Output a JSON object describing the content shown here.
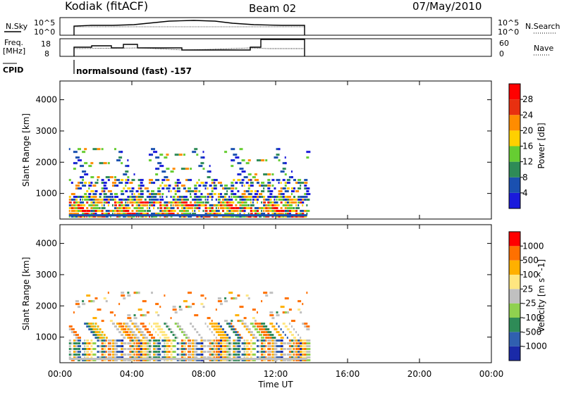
{
  "header": {
    "station": "Kodiak (fitACF)",
    "beam": "Beam 02",
    "date": "07/May/2010"
  },
  "summary_panels": {
    "noise_left_label": "N.Sky",
    "noise_left_ticks": [
      "10^5",
      "10^0"
    ],
    "noise_right_label": "N.Search",
    "noise_right_ticks": [
      "10^5",
      "10^0"
    ],
    "freq_label_line1": "Freq.",
    "freq_label_line2": "[MHz]",
    "freq_left_ticks": [
      "18",
      "8"
    ],
    "nave_label": "Nave",
    "nave_right_ticks": [
      "60",
      "0"
    ],
    "cpid_label": "CPID",
    "cpid_text": "normalsound (fast) -157"
  },
  "chart_data": [
    {
      "type": "heatmap",
      "title": "",
      "xlabel": "",
      "ylabel": "Slant Range [km]",
      "x_ticks": [
        "00:00",
        "04:00",
        "08:00",
        "12:00",
        "16:00",
        "20:00",
        "00:00"
      ],
      "xlim_hours": [
        0,
        24
      ],
      "data_xlim_hours": [
        0.5,
        13.7
      ],
      "ylim": [
        180,
        4600
      ],
      "y_ticks": [
        1000,
        2000,
        3000,
        4000
      ],
      "grid": false,
      "colorbar": {
        "label": "Power [dB]",
        "position": "right",
        "tick_labels": [
          "4",
          "8",
          "12",
          "16",
          "20",
          "24",
          "28"
        ],
        "range": [
          0,
          32
        ],
        "colors": [
          "#1a1adc",
          "#1a50b0",
          "#2e8b57",
          "#66cd32",
          "#ffd000",
          "#ff8c00",
          "#e83010",
          "#ff0000"
        ]
      }
    },
    {
      "type": "heatmap",
      "title": "",
      "xlabel": "Time UT",
      "ylabel": "Slant Range [km]",
      "x_ticks": [
        "00:00",
        "04:00",
        "08:00",
        "12:00",
        "16:00",
        "20:00",
        "00:00"
      ],
      "xlim_hours": [
        0,
        24
      ],
      "data_xlim_hours": [
        0.5,
        13.7
      ],
      "ylim": [
        180,
        4600
      ],
      "y_ticks": [
        1000,
        2000,
        3000,
        4000
      ],
      "grid": false,
      "colorbar": {
        "label": "Velocity [m s^-1]",
        "position": "right",
        "tick_labels": [
          "1000",
          "500",
          "100",
          "25",
          "-25",
          "-100",
          "-500",
          "-1000"
        ],
        "colors": [
          "#1a2aa8",
          "#3060b0",
          "#2e8b57",
          "#8fd14f",
          "#c0c0c0",
          "#ffe680",
          "#ffb000",
          "#ff7000",
          "#ff0000"
        ]
      }
    }
  ]
}
